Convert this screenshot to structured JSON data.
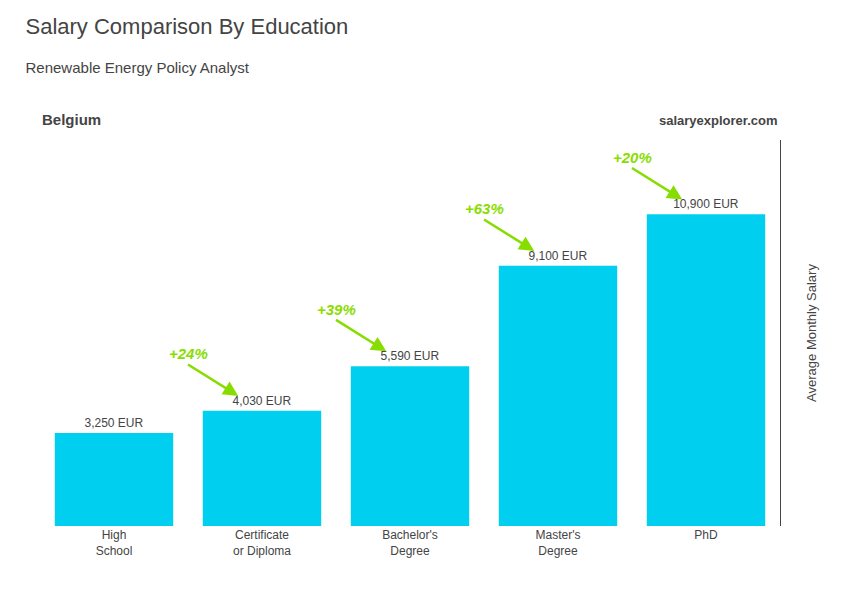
{
  "chart_data": {
    "type": "bar",
    "title": "Salary Comparison By Education",
    "subtitle": "Renewable Energy Policy Analyst",
    "ylabel": "Average Monthly Salary",
    "categories": [
      "High\nSchool",
      "Certificate\nor Diploma",
      "Bachelor's\nDegree",
      "Master's\nDegree",
      "PhD"
    ],
    "values": [
      3250,
      4030,
      5590,
      9100,
      10900
    ],
    "value_labels": [
      "3,250 EUR",
      "4,030 EUR",
      "5,590 EUR",
      "9,100 EUR",
      "10,900 EUR"
    ],
    "data_labels": true,
    "color": "#00cfef",
    "ylim": [
      0,
      13500
    ],
    "tick_labels": "x",
    "grid": false,
    "annotations": [
      {
        "text": "Belgium"
      },
      {
        "text": "salaryexplorer.com"
      },
      {
        "text": "+24%",
        "from": "High\nSchool",
        "to": "Certificate\nor Diploma",
        "color": "#88dd00"
      },
      {
        "text": "+39%",
        "from": "Certificate\nor Diploma",
        "to": "Bachelor's\nDegree",
        "color": "#88dd00"
      },
      {
        "text": "+63%",
        "from": "Bachelor's\nDegree",
        "to": "Master's\nDegree",
        "color": "#88dd00"
      },
      {
        "text": "+20%",
        "from": "Master's\nDegree",
        "to": "PhD",
        "color": "#88dd00"
      }
    ]
  }
}
